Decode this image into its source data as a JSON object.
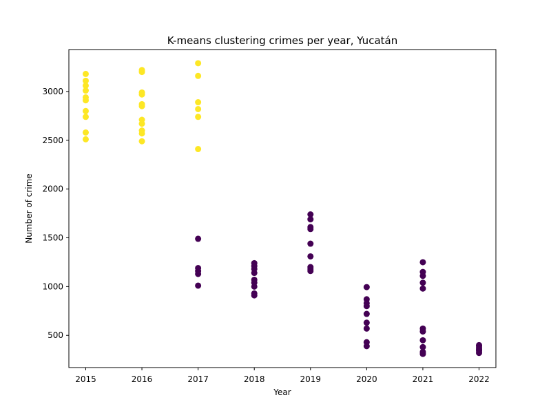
{
  "chart_data": {
    "type": "scatter",
    "title": "K-means clustering crimes per year, Yucatán",
    "xlabel": "Year",
    "ylabel": "Number of crime",
    "xlim": [
      2014.7,
      2022.3
    ],
    "ylim": [
      170,
      3430
    ],
    "xticks": [
      "2015",
      "2016",
      "2017",
      "2018",
      "2019",
      "2020",
      "2021",
      "2022"
    ],
    "yticks": [
      "500",
      "1000",
      "1500",
      "2000",
      "2500",
      "3000"
    ],
    "grid": false,
    "cluster_colors": {
      "0": "#440154",
      "1": "#fde725"
    },
    "series": [
      {
        "cluster": 1,
        "points": [
          [
            2015,
            3180
          ],
          [
            2015,
            3110
          ],
          [
            2015,
            3060
          ],
          [
            2015,
            3010
          ],
          [
            2015,
            2940
          ],
          [
            2015,
            2910
          ],
          [
            2015,
            2800
          ],
          [
            2015,
            2740
          ],
          [
            2015,
            2580
          ],
          [
            2015,
            2510
          ],
          [
            2016,
            3220
          ],
          [
            2016,
            3200
          ],
          [
            2016,
            2990
          ],
          [
            2016,
            2970
          ],
          [
            2016,
            2870
          ],
          [
            2016,
            2850
          ],
          [
            2016,
            2710
          ],
          [
            2016,
            2670
          ],
          [
            2016,
            2600
          ],
          [
            2016,
            2570
          ],
          [
            2016,
            2490
          ],
          [
            2017,
            3290
          ],
          [
            2017,
            3160
          ],
          [
            2017,
            2890
          ],
          [
            2017,
            2820
          ],
          [
            2017,
            2740
          ],
          [
            2017,
            2410
          ]
        ]
      },
      {
        "cluster": 0,
        "points": [
          [
            2017,
            1490
          ],
          [
            2017,
            1190
          ],
          [
            2017,
            1160
          ],
          [
            2017,
            1130
          ],
          [
            2017,
            1010
          ],
          [
            2018,
            1240
          ],
          [
            2018,
            1210
          ],
          [
            2018,
            1180
          ],
          [
            2018,
            1140
          ],
          [
            2018,
            1070
          ],
          [
            2018,
            1040
          ],
          [
            2018,
            1000
          ],
          [
            2018,
            930
          ],
          [
            2018,
            910
          ],
          [
            2019,
            1740
          ],
          [
            2019,
            1690
          ],
          [
            2019,
            1610
          ],
          [
            2019,
            1590
          ],
          [
            2019,
            1440
          ],
          [
            2019,
            1310
          ],
          [
            2019,
            1200
          ],
          [
            2019,
            1180
          ],
          [
            2019,
            1160
          ],
          [
            2020,
            995
          ],
          [
            2020,
            870
          ],
          [
            2020,
            830
          ],
          [
            2020,
            800
          ],
          [
            2020,
            720
          ],
          [
            2020,
            630
          ],
          [
            2020,
            570
          ],
          [
            2020,
            430
          ],
          [
            2020,
            390
          ],
          [
            2021,
            1250
          ],
          [
            2021,
            1150
          ],
          [
            2021,
            1110
          ],
          [
            2021,
            1040
          ],
          [
            2021,
            980
          ],
          [
            2021,
            570
          ],
          [
            2021,
            540
          ],
          [
            2021,
            450
          ],
          [
            2021,
            380
          ],
          [
            2021,
            330
          ],
          [
            2021,
            310
          ],
          [
            2022,
            400
          ],
          [
            2022,
            390
          ],
          [
            2022,
            370
          ],
          [
            2022,
            355
          ],
          [
            2022,
            340
          ],
          [
            2022,
            320
          ]
        ]
      }
    ]
  }
}
